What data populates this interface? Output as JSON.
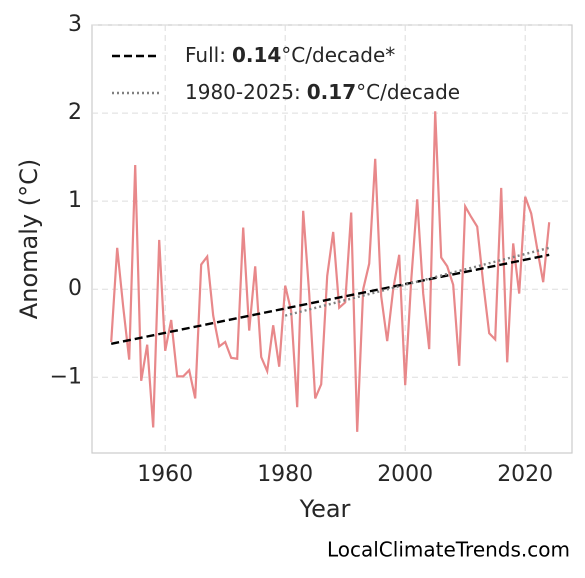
{
  "chart_data": {
    "type": "line",
    "xlabel": "Year",
    "ylabel": "Anomaly (°C)",
    "footer": "LocalClimateTrends.com",
    "xlim": [
      1947.8,
      2027.8
    ],
    "xticks": [
      1960,
      1980,
      2000,
      2020
    ],
    "ylim": [
      -1.86,
      3
    ],
    "yticks": [
      {
        "value": -1,
        "label": "−1"
      },
      0,
      1,
      2,
      3
    ],
    "grid": true,
    "legend": "upper left",
    "series": [
      {
        "color": "#e8888a",
        "style": "solid",
        "x": [
          1951,
          1952,
          1953,
          1954,
          1955,
          1956,
          1957,
          1958,
          1959,
          1960,
          1961,
          1962,
          1963,
          1964,
          1965,
          1966,
          1967,
          1968,
          1969,
          1970,
          1971,
          1972,
          1973,
          1974,
          1975,
          1976,
          1977,
          1978,
          1979,
          1980,
          1981,
          1982,
          1983,
          1984,
          1985,
          1986,
          1987,
          1988,
          1989,
          1990,
          1991,
          1992,
          1993,
          1994,
          1995,
          1996,
          1997,
          1998,
          1999,
          2000,
          2001,
          2002,
          2003,
          2004,
          2005,
          2006,
          2007,
          2008,
          2009,
          2010,
          2011,
          2012,
          2013,
          2014,
          2015,
          2016,
          2017,
          2018,
          2019,
          2020,
          2021,
          2022,
          2023,
          2024
        ],
        "values": [
          -0.6,
          0.47,
          -0.2,
          -0.8,
          1.41,
          -1.04,
          -0.63,
          -1.57,
          0.56,
          -0.7,
          -0.35,
          -0.99,
          -0.99,
          -0.92,
          -1.24,
          0.28,
          0.37,
          -0.3,
          -0.65,
          -0.6,
          -0.78,
          -0.79,
          0.7,
          -0.47,
          0.26,
          -0.77,
          -0.93,
          -0.41,
          -0.88,
          0.04,
          -0.25,
          -1.34,
          0.89,
          -0.05,
          -1.24,
          -1.08,
          0.15,
          0.65,
          -0.21,
          -0.15,
          0.87,
          -1.62,
          0.0,
          0.29,
          1.48,
          -0.08,
          -0.59,
          0.0,
          0.39,
          -1.09,
          0.1,
          1.02,
          -0.05,
          -0.68,
          2.02,
          0.36,
          0.26,
          0.05,
          -0.87,
          0.94,
          0.82,
          0.71,
          0.07,
          -0.5,
          -0.57,
          1.15,
          -0.83,
          0.52,
          -0.05,
          1.05,
          0.86,
          0.46,
          0.08,
          0.76
        ]
      },
      {
        "name_parts": [
          "Full:",
          "0.14",
          "°C/decade*"
        ],
        "color": "#000000",
        "style": "dashed",
        "x": [
          1951,
          2024
        ],
        "values": [
          -0.62,
          0.39
        ]
      },
      {
        "name_parts": [
          "1980-2025:",
          "0.17",
          "°C/decade"
        ],
        "color": "#808080",
        "style": "dotted",
        "x": [
          1980,
          2024
        ],
        "values": [
          -0.3,
          0.47
        ]
      }
    ]
  }
}
